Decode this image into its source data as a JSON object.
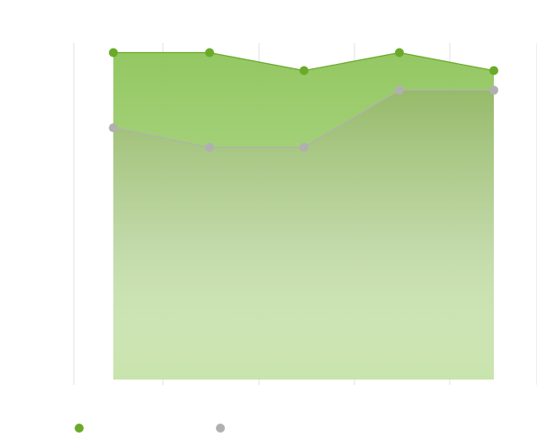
{
  "chart_data": {
    "type": "area",
    "title": "",
    "xlabel": "",
    "ylabel": "",
    "categories": [
      "",
      "",
      "",
      "",
      ""
    ],
    "ylim": [
      0,
      100
    ],
    "grid": true,
    "legend_placement": "bottom-left",
    "series": [
      {
        "name": "",
        "color": "#6aaa2a",
        "values": [
          100,
          100,
          94.5,
          100,
          94.5
        ]
      },
      {
        "name": "",
        "color": "#b0b0b0",
        "values": [
          77,
          71,
          71,
          88.5,
          88.5
        ]
      }
    ]
  }
}
